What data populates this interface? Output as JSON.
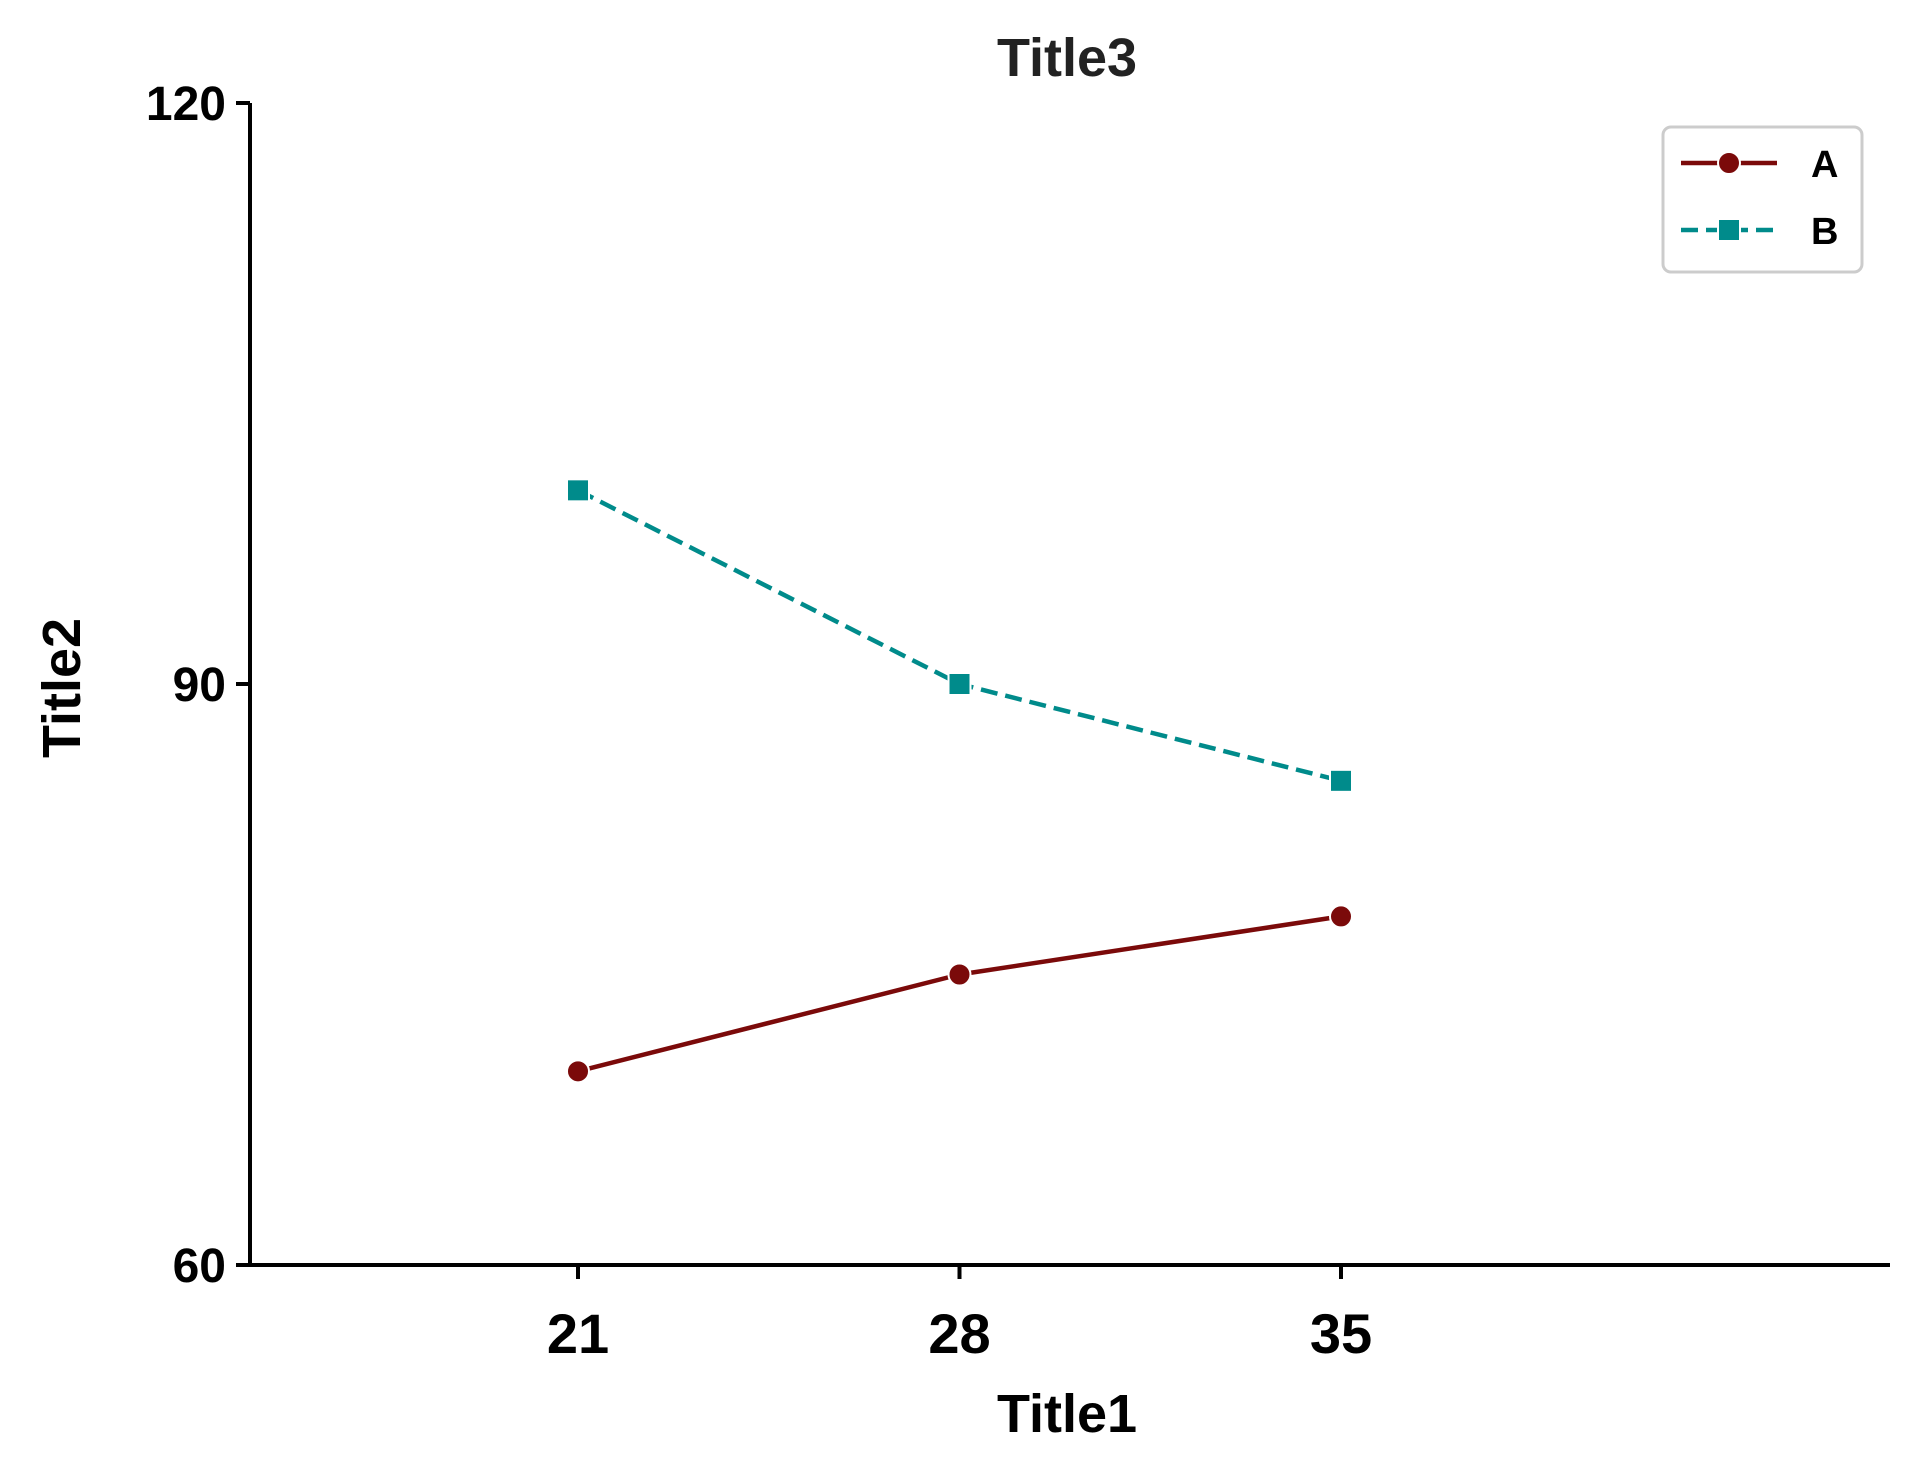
{
  "chart_data": {
    "type": "line",
    "title": "Title3",
    "xlabel": "Title1",
    "ylabel": "Title2",
    "x": [
      21,
      28,
      35
    ],
    "x_tick_labels": [
      "21",
      "28",
      "35"
    ],
    "ylim": [
      60,
      120
    ],
    "y_ticks": [
      60,
      90,
      120
    ],
    "y_tick_labels": [
      "60",
      "90",
      "120"
    ],
    "grid": false,
    "legend_position": "top-right",
    "series": [
      {
        "name": "A",
        "values": [
          70,
          75,
          78
        ],
        "color": "#7b0a0a",
        "line_style": "solid",
        "marker": "circle"
      },
      {
        "name": "B",
        "values": [
          100,
          90,
          85
        ],
        "color": "#008b8b",
        "line_style": "dashed",
        "marker": "square"
      }
    ]
  }
}
